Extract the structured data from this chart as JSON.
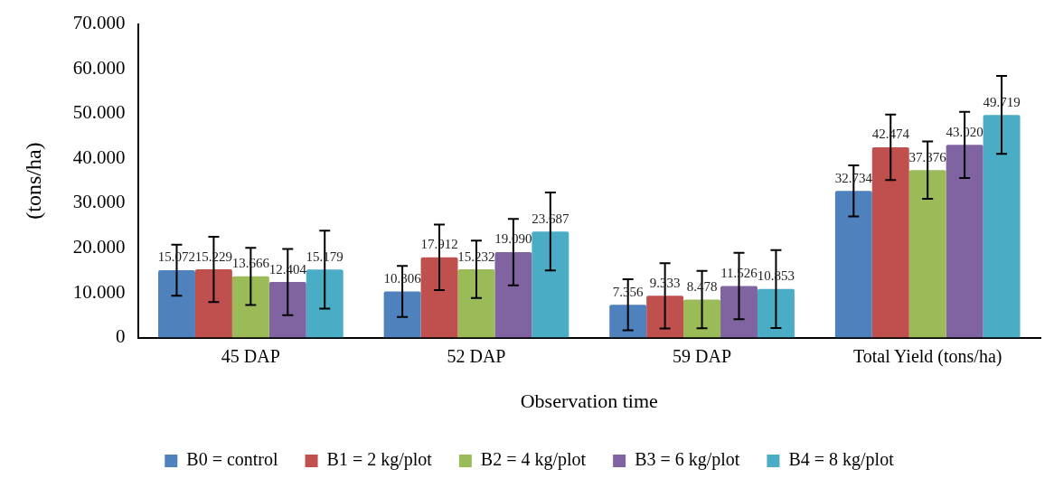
{
  "chart_data": {
    "type": "bar",
    "xlabel": "Observation time",
    "ylabel": "(tons/ha)",
    "categories": [
      "45 DAP",
      "52 DAP",
      "59 DAP",
      "Total Yield (tons/ha)"
    ],
    "series": [
      {
        "name": "B0 = control",
        "color": "#4f81bd",
        "values": [
          15072,
          10306,
          7356,
          32734
        ],
        "value_labels": [
          "15.072",
          "10.306",
          "7.356",
          "32.734"
        ],
        "errors": [
          5700,
          5700,
          5700,
          5700
        ]
      },
      {
        "name": "B1 = 2 kg/plot",
        "color": "#c0504d",
        "values": [
          15229,
          17912,
          9333,
          42474
        ],
        "value_labels": [
          "15.229",
          "17.912",
          "9.333",
          "42.474"
        ],
        "errors": [
          7300,
          7300,
          7300,
          7300
        ]
      },
      {
        "name": "B2 = 4 kg/plot",
        "color": "#9bbb59",
        "values": [
          13666,
          15232,
          8478,
          37376
        ],
        "value_labels": [
          "13.666",
          "15.232",
          "8.478",
          "37.376"
        ],
        "errors": [
          6400,
          6400,
          6400,
          6400
        ]
      },
      {
        "name": "B3 = 6 kg/plot",
        "color": "#8064a2",
        "values": [
          12404,
          19090,
          11526,
          43020
        ],
        "value_labels": [
          "12.404",
          "19.090",
          "11.526",
          "43.020"
        ],
        "errors": [
          7400,
          7400,
          7400,
          7400
        ]
      },
      {
        "name": "B4 = 8 kg/plot",
        "color": "#4bacc6",
        "values": [
          15179,
          23687,
          10853,
          49719
        ],
        "value_labels": [
          "15.179",
          "23.687",
          "10.853",
          "49.719"
        ],
        "errors": [
          8700,
          8700,
          8700,
          8700
        ]
      }
    ],
    "ylim": [
      0,
      70000
    ],
    "yticks": [
      0,
      {
        "value": 10000,
        "label": "10.000"
      },
      {
        "value": 20000,
        "label": "20.000"
      },
      {
        "value": 30000,
        "label": "30.000"
      },
      {
        "value": 40000,
        "label": "40.000"
      },
      {
        "value": 50000,
        "label": "50.000"
      },
      {
        "value": 60000,
        "label": "60.000"
      },
      {
        "value": 70000,
        "label": "70.000"
      }
    ],
    "grid": false,
    "legend": "bottom"
  }
}
